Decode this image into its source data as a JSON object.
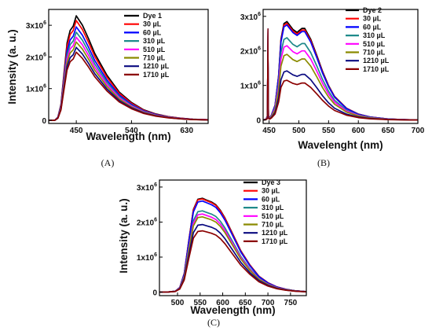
{
  "chart_data": [
    {
      "type": "line",
      "panel_label": "(A)",
      "xlabel": "Wavelength (nm)",
      "ylabel": "Intensity (a. u.)",
      "xlim": [
        405,
        665
      ],
      "ylim": [
        -100000,
        3500000
      ],
      "x_ticks": [
        450,
        540,
        630
      ],
      "y_ticks": [
        {
          "value": 0,
          "base": "0",
          "exp": ""
        },
        {
          "value": 1000000,
          "base": "1x10",
          "exp": "6"
        },
        {
          "value": 2000000,
          "base": "2x10",
          "exp": "6"
        },
        {
          "value": 3000000,
          "base": "3x10",
          "exp": "6"
        }
      ],
      "shape": {
        "x": [
          405,
          415,
          420,
          425,
          430,
          435,
          440,
          445,
          450,
          460,
          470,
          480,
          500,
          520,
          540,
          560,
          580,
          600,
          620,
          640,
          665
        ],
        "y": [
          0.0,
          0.0,
          0.03,
          0.15,
          0.45,
          0.74,
          0.86,
          0.9,
          1.0,
          0.91,
          0.78,
          0.64,
          0.43,
          0.27,
          0.17,
          0.1,
          0.06,
          0.035,
          0.02,
          0.01,
          0.005
        ]
      },
      "series": [
        {
          "name": "Dye 1",
          "color": "#000000",
          "peak": 3300000
        },
        {
          "name": "30 µL",
          "color": "#ff0000",
          "peak": 3150000
        },
        {
          "name": "60 µL",
          "color": "#0000ff",
          "peak": 2950000
        },
        {
          "name": "310 µL",
          "color": "#1f8a8a",
          "peak": 2780000
        },
        {
          "name": "510 µL",
          "color": "#ff00ff",
          "peak": 2620000
        },
        {
          "name": "710 µL",
          "color": "#8b8b00",
          "peak": 2470000
        },
        {
          "name": "1210 µL",
          "color": "#0a0a80",
          "peak": 2300000
        },
        {
          "name": "1710 µL",
          "color": "#8b0000",
          "peak": 2150000
        }
      ]
    },
    {
      "type": "line",
      "panel_label": "(B)",
      "xlabel": "Wavelenght (nm)",
      "ylabel": "",
      "xlim": [
        440,
        700
      ],
      "ylim": [
        -100000,
        3200000
      ],
      "x_ticks": [
        450,
        500,
        550,
        600,
        650,
        700
      ],
      "y_ticks": [
        {
          "value": 0,
          "base": "0",
          "exp": ""
        },
        {
          "value": 1000000,
          "base": "1x10",
          "exp": "6"
        },
        {
          "value": 2000000,
          "base": "2x10",
          "exp": "6"
        },
        {
          "value": 3000000,
          "base": "3x10",
          "exp": "6"
        }
      ],
      "shape": {
        "x": [
          440,
          445,
          448,
          451,
          454,
          460,
          466,
          470,
          475,
          480,
          490,
          497,
          505,
          510,
          520,
          530,
          540,
          550,
          560,
          580,
          600,
          620,
          650,
          680,
          700
        ],
        "y": [
          0.0,
          0.01,
          0.05,
          0.02,
          0.05,
          0.15,
          0.45,
          0.82,
          0.98,
          1.0,
          0.92,
          0.89,
          0.93,
          0.93,
          0.82,
          0.66,
          0.49,
          0.35,
          0.24,
          0.12,
          0.06,
          0.03,
          0.01,
          0.003,
          0.0
        ]
      },
      "spike": {
        "x": 448,
        "value": 2650000
      },
      "series": [
        {
          "name": "Dye 2",
          "color": "#000000",
          "peak": 2850000
        },
        {
          "name": "30 µL",
          "color": "#ff0000",
          "peak": 2800000
        },
        {
          "name": "60 µL",
          "color": "#0000ff",
          "peak": 2750000
        },
        {
          "name": "310 µL",
          "color": "#1f8a8a",
          "peak": 2380000
        },
        {
          "name": "510 µL",
          "color": "#ff00ff",
          "peak": 2150000
        },
        {
          "name": "710 µL",
          "color": "#8b8b00",
          "peak": 1900000
        },
        {
          "name": "1210 µL",
          "color": "#0a0a80",
          "peak": 1420000
        },
        {
          "name": "1710 µL",
          "color": "#8b0000",
          "peak": 1150000
        }
      ]
    },
    {
      "type": "line",
      "panel_label": "(C)",
      "xlabel": "Wavelength (nm)",
      "ylabel": "Intensity (a. u.)",
      "xlim": [
        460,
        785
      ],
      "ylim": [
        -100000,
        3200000
      ],
      "x_ticks": [
        500,
        550,
        600,
        650,
        700,
        750
      ],
      "y_ticks": [
        {
          "value": 0,
          "base": "0",
          "exp": ""
        },
        {
          "value": 1000000,
          "base": "1x10",
          "exp": "6"
        },
        {
          "value": 2000000,
          "base": "2x10",
          "exp": "6"
        },
        {
          "value": 3000000,
          "base": "3x10",
          "exp": "6"
        }
      ],
      "shape": {
        "x": [
          460,
          480,
          495,
          505,
          515,
          525,
          535,
          545,
          555,
          565,
          575,
          585,
          595,
          605,
          620,
          640,
          660,
          680,
          700,
          720,
          740,
          760,
          785
        ],
        "y": [
          0.0,
          0.002,
          0.01,
          0.05,
          0.2,
          0.55,
          0.88,
          0.99,
          1.0,
          0.98,
          0.96,
          0.93,
          0.87,
          0.79,
          0.64,
          0.44,
          0.29,
          0.17,
          0.1,
          0.055,
          0.03,
          0.015,
          0.005
        ]
      },
      "series": [
        {
          "name": "Dye 3",
          "color": "#000000",
          "peak": 2680000
        },
        {
          "name": "30 µL",
          "color": "#ff0000",
          "peak": 2660000
        },
        {
          "name": "60 µL",
          "color": "#0000ff",
          "peak": 2600000
        },
        {
          "name": "310 µL",
          "color": "#1f8a8a",
          "peak": 2320000
        },
        {
          "name": "510 µL",
          "color": "#ff00ff",
          "peak": 2230000
        },
        {
          "name": "710 µL",
          "color": "#8b8b00",
          "peak": 2150000
        },
        {
          "name": "1210 µL",
          "color": "#0a0a80",
          "peak": 1930000
        },
        {
          "name": "1710 µL",
          "color": "#8b0000",
          "peak": 1750000
        }
      ]
    }
  ]
}
